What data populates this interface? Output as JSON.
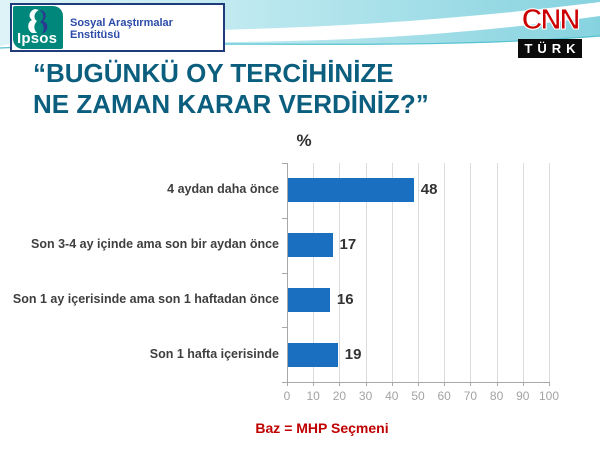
{
  "header": {
    "ipsos": {
      "logo_text": "Ipsos",
      "institute_label": "Sosyal Araştırmalar Enstitüsü"
    },
    "cnn": {
      "line1": "CNN",
      "line2": "TÜRK"
    }
  },
  "title": {
    "line1": "“BUGÜNKÜ OY TERCİHİNİZE",
    "line2": "NE ZAMAN KARAR VERDİNİZ?”"
  },
  "footer": {
    "base_note": "Baz = MHP Seçmeni"
  },
  "chart_data": {
    "type": "bar",
    "orientation": "horizontal",
    "title": "“BUGÜNKÜ OY TERCİHİNİZE NE ZAMAN KARAR VERDİNİZ?”",
    "unit_label": "%",
    "categories": [
      "4 aydan daha önce",
      "Son 3-4 ay içinde ama son bir aydan önce",
      "Son 1 ay içerisinde ama son 1 haftadan önce",
      "Son 1 hafta içerisinde"
    ],
    "values": [
      48,
      17,
      16,
      19
    ],
    "xlim": [
      0,
      100
    ],
    "x_ticks": [
      0,
      10,
      20,
      30,
      40,
      50,
      60,
      70,
      80,
      90,
      100
    ],
    "grid": true,
    "legend": "none",
    "base_note": "Baz = MHP Seçmeni"
  },
  "colors": {
    "bar": "#1B6FC0",
    "grid": "#DCDCDC",
    "axis": "#A8A8A8",
    "tick_label": "#A3A3A3",
    "category_label": "#3F3F3F",
    "value_label": "#333333",
    "title": "#0C5E7E",
    "footer": "#C00000",
    "ipsos_teal": "#00877B",
    "logo_border_navy": "#1E3B7A",
    "institute_text_blue": "#2B4BA8",
    "cnn_red": "#CC0000",
    "swoosh_cyan": "#86D3DF"
  }
}
